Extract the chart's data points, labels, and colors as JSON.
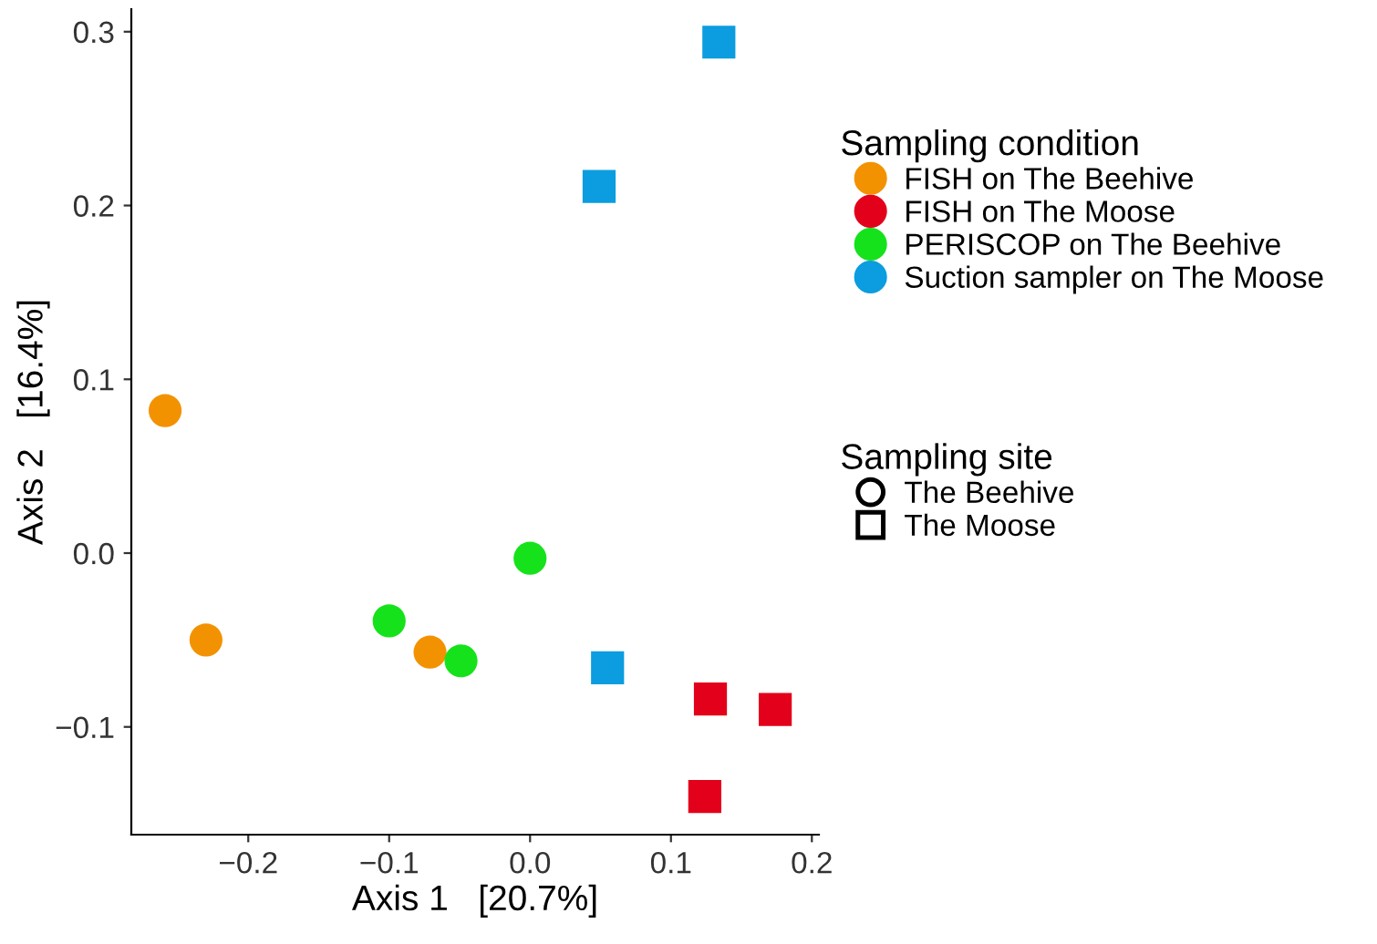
{
  "chart_data": {
    "type": "scatter",
    "xlabel": "Axis 1   [20.7%]",
    "ylabel": "Axis 2   [16.4%]",
    "legend_title": "Sampling condition",
    "legend": "right",
    "grid": false,
    "xlim": [
      -0.283,
      0.205
    ],
    "ylim": [
      -0.162,
      0.313
    ],
    "xticks": [
      {
        "value": -0.2,
        "label": "−0.2"
      },
      {
        "value": -0.1,
        "label": "−0.1"
      },
      {
        "value": 0.0,
        "label": "0.0"
      },
      {
        "value": 0.1,
        "label": "0.1"
      },
      {
        "value": 0.2,
        "label": "0.2"
      }
    ],
    "yticks": [
      {
        "value": -0.1,
        "label": "−0.1"
      },
      {
        "value": 0.0,
        "label": "0.0"
      },
      {
        "value": 0.1,
        "label": "0.1"
      },
      {
        "value": 0.2,
        "label": "0.2"
      },
      {
        "value": 0.3,
        "label": "0.3"
      }
    ],
    "series": [
      {
        "name": "FISH on The Beehive",
        "color": "#f39200",
        "marker": "circle",
        "x": [
          -0.259,
          -0.23,
          -0.071
        ],
        "values": [
          0.082,
          -0.05,
          -0.057
        ]
      },
      {
        "name": "FISH on The Moose",
        "color": "#e3001b",
        "marker": "square",
        "x": [
          0.128,
          0.174,
          0.124
        ],
        "values": [
          -0.084,
          -0.09,
          -0.14
        ]
      },
      {
        "name": "PERISCOP on The Beehive",
        "color": "#16e21b",
        "marker": "circle",
        "x": [
          -0.1,
          -0.049,
          0.0
        ],
        "values": [
          -0.039,
          -0.062,
          -0.003
        ]
      },
      {
        "name": "Suction sampler on The Moose",
        "color": "#0b9ddf",
        "marker": "square",
        "x": [
          0.134,
          0.049,
          0.055
        ],
        "values": [
          0.294,
          0.211,
          -0.066
        ]
      }
    ],
    "annotations": [
      "Sampling site",
      "The Beehive",
      "The Moose"
    ]
  }
}
